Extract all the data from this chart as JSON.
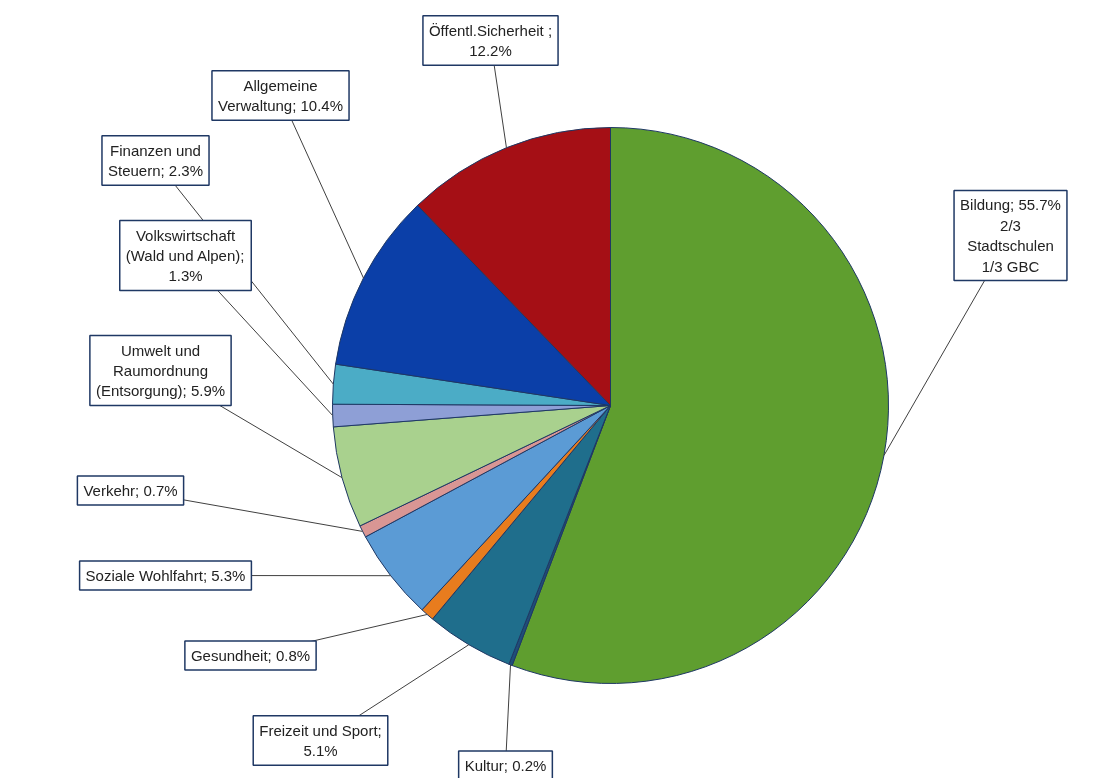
{
  "chart_data": {
    "type": "pie",
    "categories": [
      null,
      null,
      null,
      null,
      null,
      null,
      null,
      null,
      null,
      null,
      null
    ],
    "values": [
      55.7,
      0.2,
      5.1,
      0.8,
      5.3,
      0.7,
      5.9,
      1.3,
      2.3,
      10.4,
      12.2
    ],
    "colors": [
      "#5f9e2f",
      "#1f4e79",
      "#1f6e8c",
      "#e87c1e",
      "#5b9bd5",
      "#d99694",
      "#a9d18e",
      "#8e9fd6",
      "#4bacc6",
      "#0b3fa8",
      "#a50f15"
    ],
    "value_labels": [
      "Bildung; 55.7%\n2/3\nStadtschulen\n1/3 GBC",
      "Kultur; 0.2%",
      "Freizeit und Sport;\n5.1%",
      "Gesundheit; 0.8%",
      "Soziale Wohlfahrt; 5.3%",
      "Verkehr; 0.7%",
      "Umwelt und\nRaumordnung\n(Entsorgung); 5.9%",
      "Volkswirtschaft\n(Wald und Alpen);\n1.3%",
      "Finanzen und\nSteuern; 2.3%",
      "Allgemeine\nVerwaltung; 10.4%",
      "Öffentl.Sicherheit ;\n12.2%"
    ]
  }
}
